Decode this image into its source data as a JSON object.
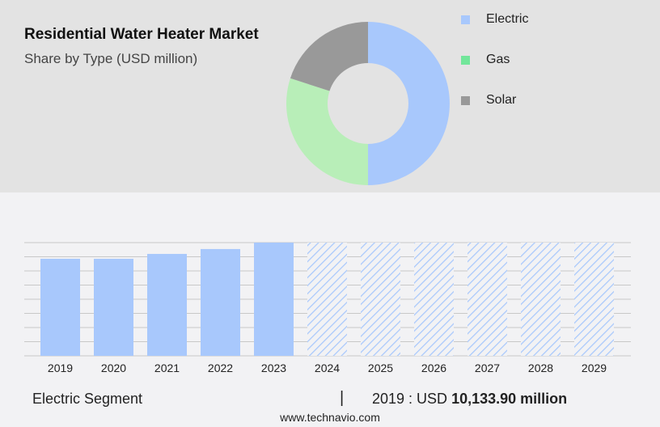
{
  "title": "Residential Water Heater Market",
  "subtitle": "Share by Type (USD million)",
  "chart_data": [
    {
      "type": "pie",
      "donut": true,
      "labels": [
        "Electric",
        "Gas",
        "Solar"
      ],
      "values": [
        50,
        30,
        20
      ],
      "colors": [
        "#a8c8fc",
        "#b8eeb8",
        "#999999"
      ],
      "legend_colors": [
        "#a8c8fc",
        "#72e69a",
        "#999999"
      ],
      "legend_placement": "right"
    },
    {
      "type": "bar",
      "categories": [
        "2019",
        "2020",
        "2021",
        "2022",
        "2023",
        "2024",
        "2025",
        "2026",
        "2027",
        "2028",
        "2029"
      ],
      "values": [
        10133.9,
        10130,
        10640,
        11150,
        11820,
        null,
        null,
        null,
        null,
        null,
        null
      ],
      "forecast": [
        false,
        false,
        false,
        false,
        false,
        true,
        true,
        true,
        true,
        true,
        true
      ],
      "color": "#a8c8fc",
      "ylim": [
        0,
        11820
      ],
      "grid": true
    }
  ],
  "footer": {
    "segment": "Electric Segment",
    "separator": "|",
    "year_label": "2019 : USD",
    "value": "10,133.90 million",
    "site": "www.technavio.com"
  }
}
